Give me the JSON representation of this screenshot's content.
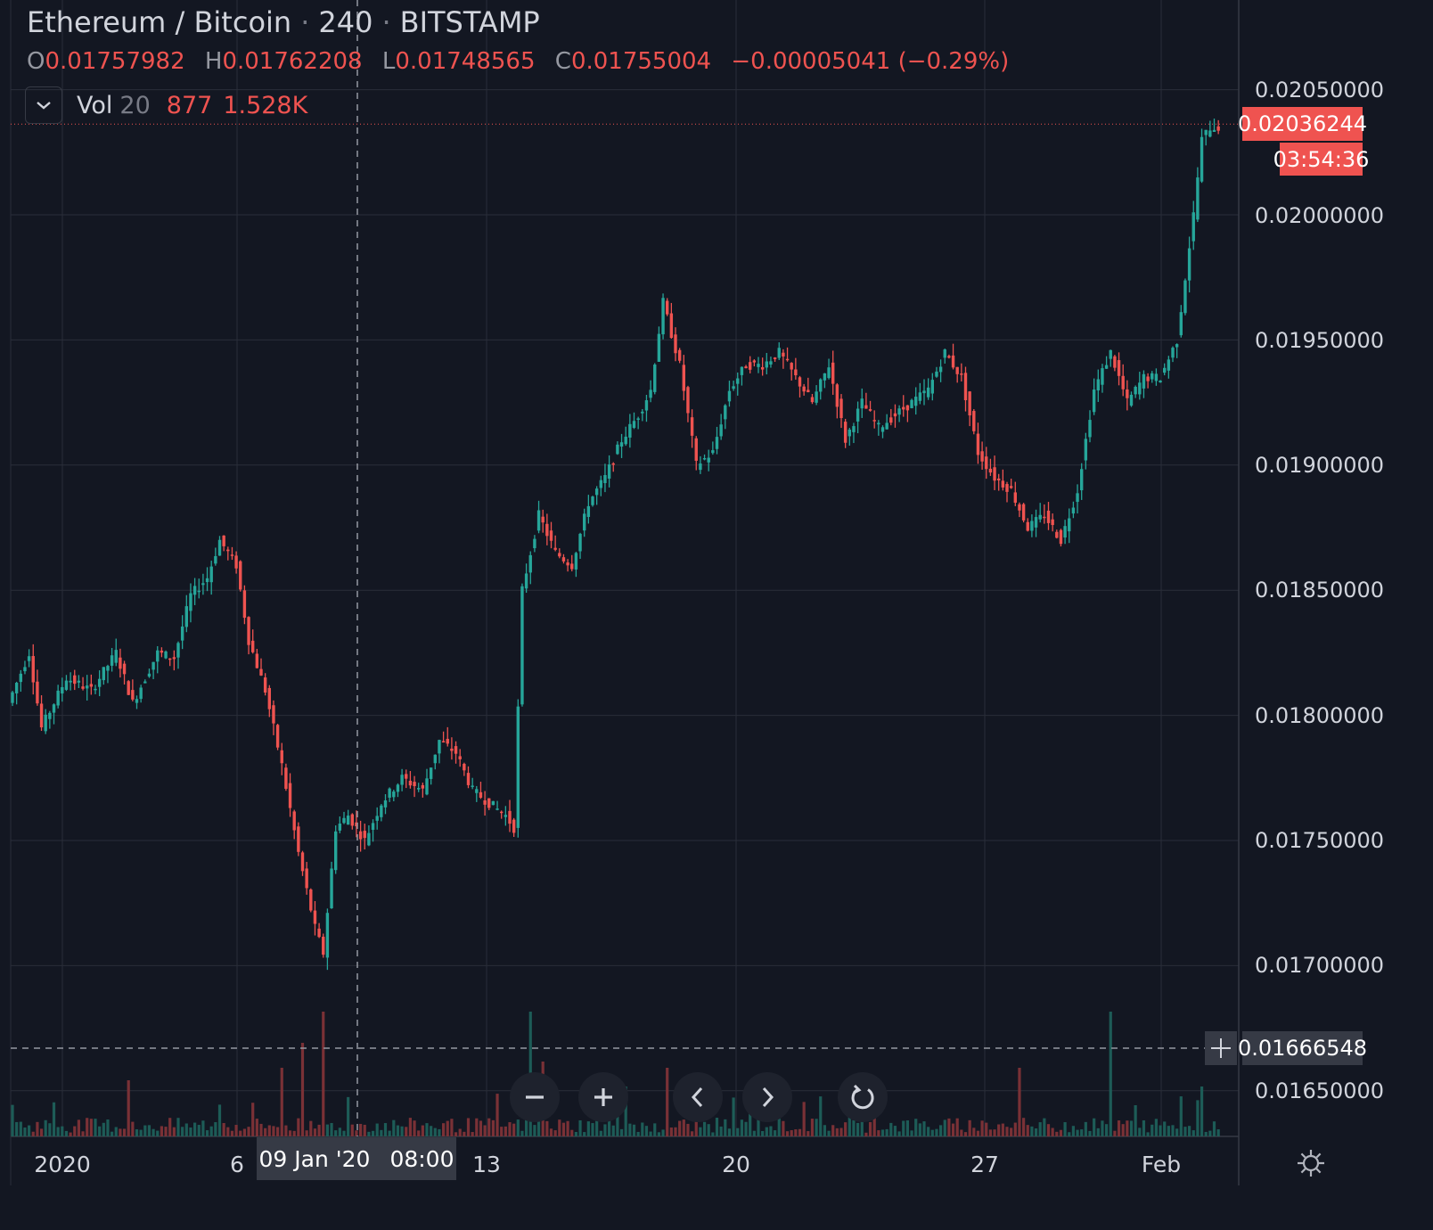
{
  "header": {
    "symbol": "Ethereum / Bitcoin",
    "interval": "240",
    "exchange": "BITSTAMP"
  },
  "ohlc": {
    "o_key": "O",
    "o": "0.01757982",
    "h_key": "H",
    "h": "0.01762208",
    "l_key": "L",
    "l": "0.01748565",
    "c_key": "C",
    "c": "0.01755004",
    "change": "−0.00005041 (−0.29%)"
  },
  "volume_legend": {
    "label": "Vol",
    "length": "20",
    "value": "877",
    "ma": "1.528K"
  },
  "price_axis": {
    "labels": [
      "0.02050000",
      "0.02000000",
      "0.01950000",
      "0.01900000",
      "0.01850000",
      "0.01800000",
      "0.01750000",
      "0.01700000",
      "0.01650000"
    ],
    "last_price": "0.02036244",
    "countdown": "03:54:36",
    "crosshair_price": "0.01666548"
  },
  "time_axis": {
    "labels": [
      "2020",
      "6",
      "13",
      "20",
      "27",
      "Feb"
    ],
    "crosshair_date": "09 Jan '20",
    "crosshair_time": "08:00"
  },
  "colors": {
    "background": "#131722",
    "up": "#26a69a",
    "down": "#ef5350",
    "grid": "#2a2e39",
    "text": "#d1d4dc"
  },
  "icons": {
    "chevron": "chevron-down-icon",
    "zoom_out": "minus-icon",
    "zoom_in": "plus-icon",
    "left": "chevron-left-icon",
    "right": "chevron-right-icon",
    "reset": "reset-icon",
    "settings": "gear-icon",
    "crosshair": "crosshair-icon"
  },
  "chart_data": {
    "type": "candlestick",
    "title": "Ethereum / Bitcoin",
    "interval": "240",
    "exchange": "BITSTAMP",
    "ylim": [
      0.0163,
      0.0206
    ],
    "x_ticks": [
      "2020",
      "6",
      "13",
      "20",
      "27",
      "Feb"
    ],
    "y_ticks": [
      0.0165,
      0.017,
      0.0175,
      0.018,
      0.0185,
      0.019,
      0.0195,
      0.02,
      0.0205
    ],
    "last_price": 0.02036244,
    "anchors": [
      [
        0,
        0.01805
      ],
      [
        5,
        0.01825
      ],
      [
        8,
        0.01795
      ],
      [
        14,
        0.01815
      ],
      [
        20,
        0.0181
      ],
      [
        26,
        0.01825
      ],
      [
        30,
        0.01805
      ],
      [
        36,
        0.01825
      ],
      [
        40,
        0.01823
      ],
      [
        44,
        0.01848
      ],
      [
        48,
        0.01855
      ],
      [
        51,
        0.0187
      ],
      [
        55,
        0.0186
      ],
      [
        58,
        0.0183
      ],
      [
        62,
        0.0181
      ],
      [
        66,
        0.0178
      ],
      [
        70,
        0.01745
      ],
      [
        74,
        0.01715
      ],
      [
        76,
        0.01705
      ],
      [
        79,
        0.01755
      ],
      [
        82,
        0.0176
      ],
      [
        86,
        0.0175
      ],
      [
        90,
        0.01765
      ],
      [
        95,
        0.01775
      ],
      [
        100,
        0.0177
      ],
      [
        104,
        0.0179
      ],
      [
        108,
        0.01785
      ],
      [
        112,
        0.0177
      ],
      [
        116,
        0.01765
      ],
      [
        120,
        0.0176
      ],
      [
        122,
        0.01755
      ],
      [
        124,
        0.0185
      ],
      [
        128,
        0.0188
      ],
      [
        132,
        0.01865
      ],
      [
        136,
        0.0186
      ],
      [
        140,
        0.01885
      ],
      [
        144,
        0.01895
      ],
      [
        148,
        0.0191
      ],
      [
        152,
        0.0192
      ],
      [
        155,
        0.0193
      ],
      [
        158,
        0.01965
      ],
      [
        162,
        0.0194
      ],
      [
        166,
        0.019
      ],
      [
        170,
        0.01905
      ],
      [
        174,
        0.0193
      ],
      [
        178,
        0.0194
      ],
      [
        182,
        0.0194
      ],
      [
        186,
        0.01945
      ],
      [
        190,
        0.01935
      ],
      [
        194,
        0.01925
      ],
      [
        198,
        0.0194
      ],
      [
        202,
        0.0191
      ],
      [
        206,
        0.01925
      ],
      [
        210,
        0.01915
      ],
      [
        214,
        0.0192
      ],
      [
        218,
        0.01925
      ],
      [
        222,
        0.0193
      ],
      [
        226,
        0.01945
      ],
      [
        230,
        0.01935
      ],
      [
        234,
        0.01905
      ],
      [
        238,
        0.01895
      ],
      [
        242,
        0.0189
      ],
      [
        246,
        0.01875
      ],
      [
        250,
        0.0188
      ],
      [
        254,
        0.0187
      ],
      [
        258,
        0.0189
      ],
      [
        262,
        0.0193
      ],
      [
        266,
        0.01945
      ],
      [
        270,
        0.01925
      ],
      [
        274,
        0.01935
      ],
      [
        278,
        0.01935
      ],
      [
        282,
        0.0195
      ],
      [
        286,
        0.02
      ],
      [
        288,
        0.0203
      ],
      [
        290,
        0.02035
      ]
    ],
    "volume_spikes": [
      [
        28,
        0.45
      ],
      [
        65,
        0.55
      ],
      [
        70,
        0.75
      ],
      [
        75,
        1.0
      ],
      [
        125,
        1.0
      ],
      [
        128,
        0.6
      ],
      [
        148,
        0.4
      ],
      [
        158,
        0.55
      ],
      [
        243,
        0.55
      ],
      [
        265,
        1.0
      ],
      [
        271,
        0.25
      ],
      [
        287,
        0.4
      ]
    ]
  }
}
